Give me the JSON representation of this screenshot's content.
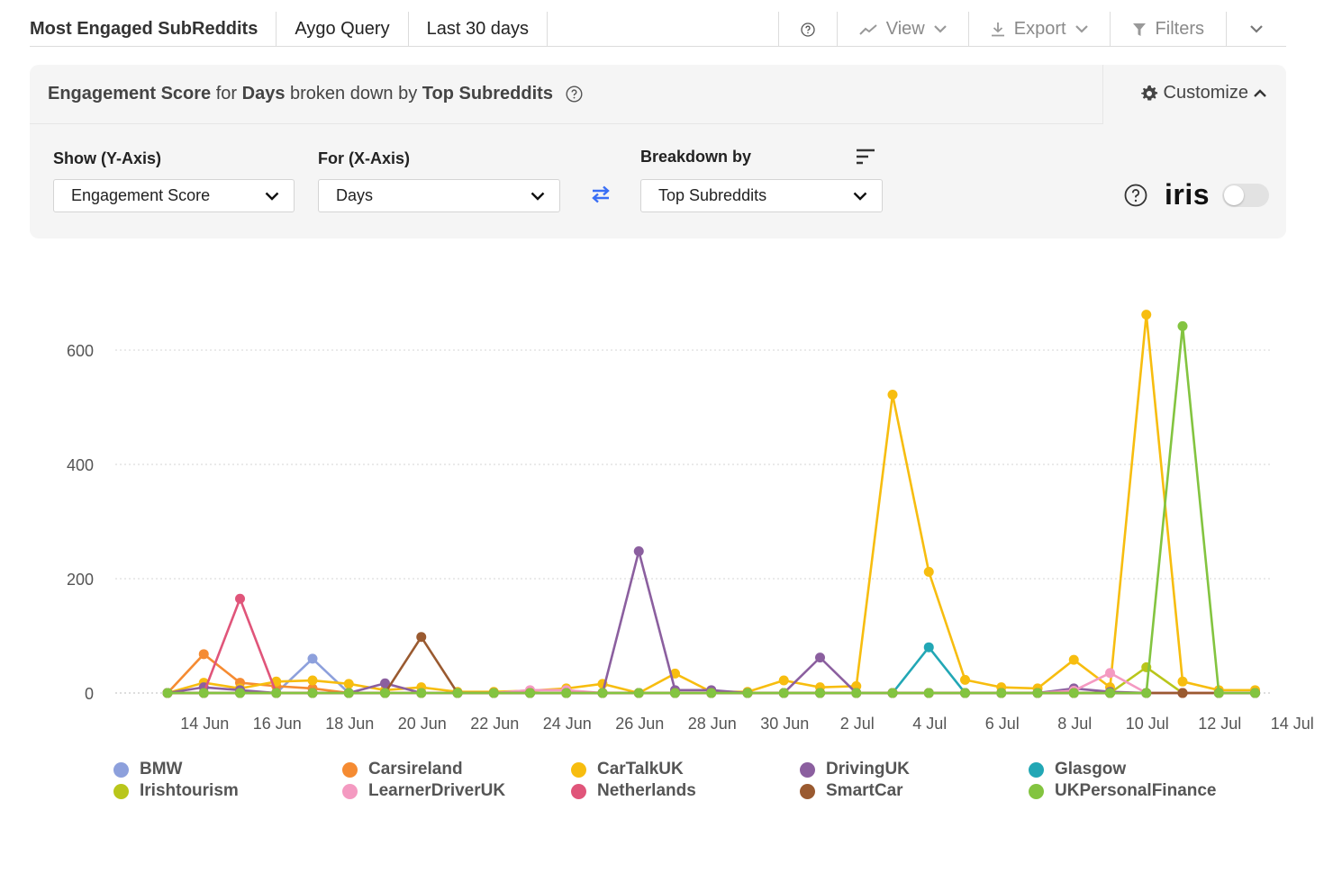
{
  "toolbar": {
    "title": "Most Engaged SubReddits",
    "query": "Aygo Query",
    "range": "Last 30 days",
    "view_label": "View",
    "export_label": "Export",
    "filters_label": "Filters"
  },
  "panel": {
    "metric": "Engagement Score",
    "for_word": "for",
    "dimension": "Days",
    "broken_word": "broken down by",
    "breakdown": "Top Subreddits",
    "customize_label": "Customize",
    "y_label": "Show (Y-Axis)",
    "y_value": "Engagement Score",
    "x_label": "For (X-Axis)",
    "x_value": "Days",
    "breakdown_label": "Breakdown by",
    "breakdown_value": "Top Subreddits",
    "iris_label": "iris",
    "iris_enabled": false
  },
  "chart_data": {
    "type": "line",
    "x": [
      "13 Jun",
      "14 Jun",
      "15 Jun",
      "16 Jun",
      "17 Jun",
      "18 Jun",
      "19 Jun",
      "20 Jun",
      "21 Jun",
      "22 Jun",
      "23 Jun",
      "24 Jun",
      "25 Jun",
      "26 Jun",
      "27 Jun",
      "28 Jun",
      "29 Jun",
      "30 Jun",
      "1 Jul",
      "2 Jul",
      "3 Jul",
      "4 Jul",
      "5 Jul",
      "6 Jul",
      "7 Jul",
      "8 Jul",
      "9 Jul",
      "10 Jul",
      "11 Jul",
      "12 Jul",
      "13 Jul"
    ],
    "x_tick_labels": [
      "14 Jun",
      "16 Jun",
      "18 Jun",
      "20 Jun",
      "22 Jun",
      "24 Jun",
      "26 Jun",
      "28 Jun",
      "30 Jun",
      "2 Jul",
      "4 Jul",
      "6 Jul",
      "8 Jul",
      "10 Jul",
      "12 Jul",
      "14 Jul"
    ],
    "y_ticks": [
      0,
      200,
      400,
      600
    ],
    "ylim": [
      0,
      700
    ],
    "grid": true,
    "legend_position": "bottom",
    "series": [
      {
        "name": "BMW",
        "color": "#8da0dc",
        "values": [
          0,
          0,
          0,
          0,
          60,
          0,
          0,
          0,
          0,
          0,
          0,
          0,
          0,
          0,
          0,
          0,
          0,
          0,
          0,
          0,
          0,
          0,
          0,
          0,
          0,
          0,
          0,
          0,
          0,
          0,
          0
        ]
      },
      {
        "name": "Carsireland",
        "color": "#f58b32",
        "values": [
          0,
          68,
          18,
          12,
          8,
          0,
          0,
          0,
          0,
          0,
          0,
          0,
          0,
          0,
          0,
          0,
          0,
          0,
          0,
          0,
          0,
          0,
          0,
          0,
          0,
          0,
          0,
          0,
          0,
          0,
          0
        ]
      },
      {
        "name": "CarTalkUK",
        "color": "#f7bd0f",
        "values": [
          0,
          18,
          8,
          20,
          22,
          16,
          5,
          10,
          2,
          2,
          4,
          8,
          16,
          0,
          34,
          2,
          2,
          22,
          10,
          12,
          522,
          212,
          23,
          10,
          8,
          58,
          10,
          662,
          20,
          5,
          5
        ]
      },
      {
        "name": "DrivingUK",
        "color": "#8b5f9f",
        "values": [
          0,
          10,
          5,
          0,
          0,
          0,
          17,
          0,
          0,
          0,
          0,
          0,
          0,
          248,
          5,
          5,
          0,
          0,
          62,
          0,
          0,
          0,
          0,
          0,
          0,
          8,
          2,
          0,
          0,
          0,
          0
        ]
      },
      {
        "name": "Glasgow",
        "color": "#22a7b5",
        "values": [
          0,
          0,
          0,
          0,
          0,
          0,
          0,
          0,
          0,
          0,
          0,
          0,
          0,
          0,
          0,
          0,
          0,
          0,
          0,
          0,
          0,
          80,
          0,
          0,
          0,
          0,
          0,
          0,
          0,
          0,
          0
        ]
      },
      {
        "name": "Irishtourism",
        "color": "#b9c61b",
        "values": [
          0,
          0,
          0,
          0,
          0,
          0,
          0,
          0,
          0,
          0,
          0,
          0,
          0,
          0,
          0,
          0,
          0,
          0,
          0,
          0,
          0,
          0,
          0,
          0,
          0,
          0,
          0,
          45,
          0,
          0,
          0
        ]
      },
      {
        "name": "LearnerDriverUK",
        "color": "#f49ac1",
        "values": [
          0,
          0,
          0,
          0,
          0,
          0,
          0,
          0,
          0,
          0,
          5,
          5,
          0,
          0,
          0,
          0,
          0,
          0,
          0,
          0,
          0,
          0,
          0,
          0,
          0,
          4,
          35,
          0,
          0,
          0,
          0
        ]
      },
      {
        "name": "Netherlands",
        "color": "#e0557a",
        "values": [
          0,
          0,
          165,
          0,
          0,
          0,
          0,
          0,
          0,
          0,
          0,
          0,
          0,
          0,
          0,
          0,
          0,
          0,
          0,
          0,
          0,
          0,
          0,
          0,
          0,
          0,
          0,
          0,
          0,
          0,
          0
        ]
      },
      {
        "name": "SmartCar",
        "color": "#9a5a30",
        "values": [
          0,
          0,
          0,
          0,
          0,
          0,
          0,
          98,
          0,
          0,
          0,
          0,
          0,
          0,
          0,
          0,
          0,
          0,
          0,
          0,
          0,
          0,
          0,
          0,
          0,
          0,
          0,
          0,
          0,
          0,
          0
        ]
      },
      {
        "name": "UKPersonalFinance",
        "color": "#83c440",
        "values": [
          0,
          0,
          0,
          0,
          0,
          0,
          0,
          0,
          0,
          0,
          0,
          0,
          0,
          0,
          0,
          0,
          0,
          0,
          0,
          0,
          0,
          0,
          0,
          0,
          0,
          0,
          0,
          0,
          642,
          0,
          0
        ]
      }
    ]
  },
  "legend": [
    {
      "name": "BMW",
      "color": "#8da0dc"
    },
    {
      "name": "Carsireland",
      "color": "#f58b32"
    },
    {
      "name": "CarTalkUK",
      "color": "#f7bd0f"
    },
    {
      "name": "DrivingUK",
      "color": "#8b5f9f"
    },
    {
      "name": "Glasgow",
      "color": "#22a7b5"
    },
    {
      "name": "Irishtourism",
      "color": "#b9c61b"
    },
    {
      "name": "LearnerDriverUK",
      "color": "#f49ac1"
    },
    {
      "name": "Netherlands",
      "color": "#e0557a"
    },
    {
      "name": "SmartCar",
      "color": "#9a5a30"
    },
    {
      "name": "UKPersonalFinance",
      "color": "#83c440"
    }
  ]
}
